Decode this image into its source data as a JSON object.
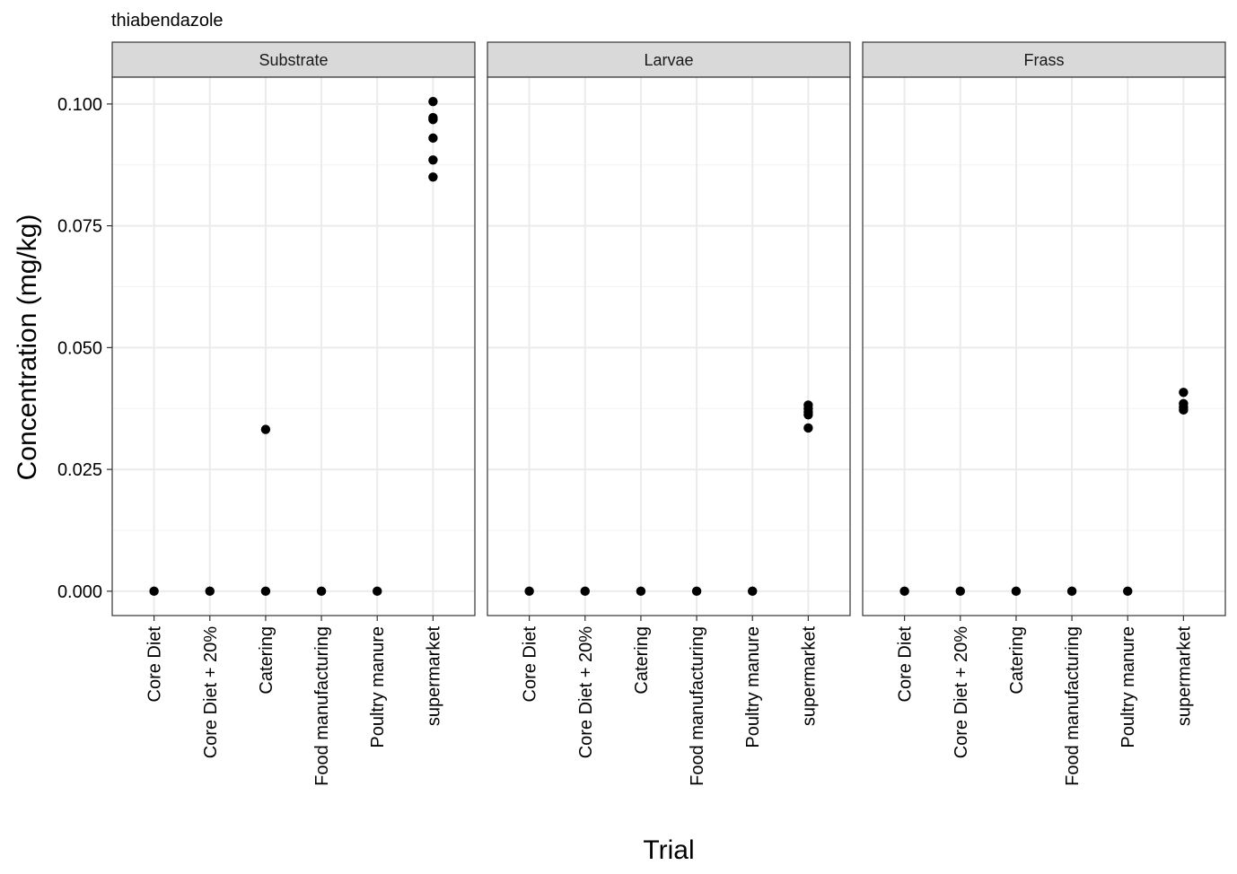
{
  "chart_data": {
    "type": "scatter",
    "title": "thiabendazole",
    "xlabel": "Trial",
    "ylabel": "Concentration (mg/kg)",
    "ylim": [
      -0.005,
      0.1055
    ],
    "y_ticks": [
      0.0,
      0.025,
      0.05,
      0.075,
      0.1
    ],
    "y_tick_labels": [
      "0.000",
      "0.025",
      "0.050",
      "0.075",
      "0.100"
    ],
    "categories": [
      "Core Diet",
      "Core Diet + 20%",
      "Catering",
      "Food manufacturing",
      "Poultry manure",
      "supermarket"
    ],
    "grid": true,
    "colors": {
      "point": "#000000",
      "strip_fill": "#d9d9d9",
      "grid": "#ebebeb",
      "panel_border": "#333333"
    },
    "panels": [
      {
        "name": "Substrate",
        "points": [
          {
            "x": "Core Diet",
            "y": 0.0
          },
          {
            "x": "Core Diet + 20%",
            "y": 0.0
          },
          {
            "x": "Catering",
            "y": 0.0
          },
          {
            "x": "Catering",
            "y": 0.0332
          },
          {
            "x": "Food manufacturing",
            "y": 0.0
          },
          {
            "x": "Poultry manure",
            "y": 0.0
          },
          {
            "x": "supermarket",
            "y": 0.1005
          },
          {
            "x": "supermarket",
            "y": 0.0972
          },
          {
            "x": "supermarket",
            "y": 0.0968
          },
          {
            "x": "supermarket",
            "y": 0.093
          },
          {
            "x": "supermarket",
            "y": 0.0885
          },
          {
            "x": "supermarket",
            "y": 0.085
          }
        ]
      },
      {
        "name": "Larvae",
        "points": [
          {
            "x": "Core Diet",
            "y": 0.0
          },
          {
            "x": "Core Diet + 20%",
            "y": 0.0
          },
          {
            "x": "Catering",
            "y": 0.0
          },
          {
            "x": "Food manufacturing",
            "y": 0.0
          },
          {
            "x": "Poultry manure",
            "y": 0.0
          },
          {
            "x": "supermarket",
            "y": 0.0382
          },
          {
            "x": "supermarket",
            "y": 0.0375
          },
          {
            "x": "supermarket",
            "y": 0.0368
          },
          {
            "x": "supermarket",
            "y": 0.0362
          },
          {
            "x": "supermarket",
            "y": 0.0335
          }
        ]
      },
      {
        "name": "Frass",
        "points": [
          {
            "x": "Core Diet",
            "y": 0.0
          },
          {
            "x": "Core Diet + 20%",
            "y": 0.0
          },
          {
            "x": "Catering",
            "y": 0.0
          },
          {
            "x": "Food manufacturing",
            "y": 0.0
          },
          {
            "x": "Poultry manure",
            "y": 0.0
          },
          {
            "x": "supermarket",
            "y": 0.0408
          },
          {
            "x": "supermarket",
            "y": 0.0385
          },
          {
            "x": "supermarket",
            "y": 0.0378
          },
          {
            "x": "supermarket",
            "y": 0.0372
          }
        ]
      }
    ]
  }
}
